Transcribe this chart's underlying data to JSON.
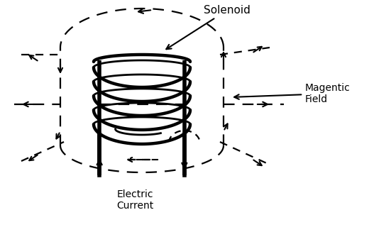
{
  "bg_color": "#ffffff",
  "line_color": "#000000",
  "label_solenoid": "Solenoid",
  "label_magnetic": "Magentic\nField",
  "label_electric": "Electric\nCurrent",
  "figsize": [
    5.2,
    3.27
  ],
  "dpi": 100
}
